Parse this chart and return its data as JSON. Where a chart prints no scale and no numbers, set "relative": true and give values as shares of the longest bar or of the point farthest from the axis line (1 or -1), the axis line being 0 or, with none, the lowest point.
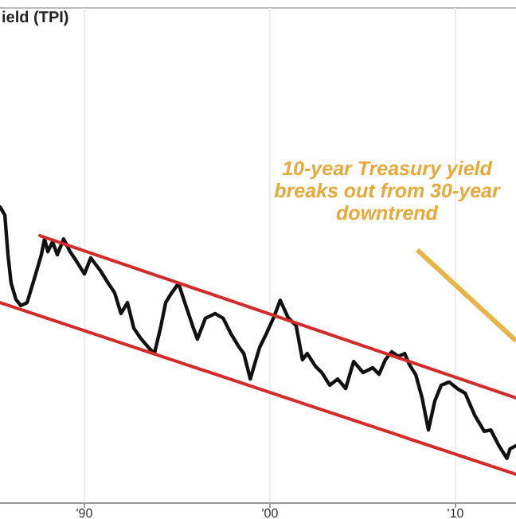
{
  "chart_data": {
    "type": "line",
    "title": "ield (TPI)",
    "relative": true,
    "x": [
      1985.45,
      1985.71,
      1985.88,
      1986.05,
      1986.31,
      1986.57,
      1986.91,
      1987.17,
      1987.43,
      1987.68,
      1987.85,
      1988.03,
      1988.28,
      1988.54,
      1988.88,
      1989.23,
      1989.57,
      1990.0,
      1990.34,
      1990.86,
      1991.29,
      1991.63,
      1991.97,
      1992.32,
      1992.66,
      1993.0,
      1993.43,
      1993.77,
      1994.12,
      1994.38,
      1994.64,
      1995.07,
      1995.41,
      1995.84,
      1996.09,
      1996.52,
      1997.04,
      1997.48,
      1997.91,
      1998.33,
      1998.59,
      1998.94,
      1999.19,
      1999.45,
      1999.79,
      2000.21,
      2000.55,
      2000.98,
      2001.41,
      2001.75,
      2002.01,
      2002.45,
      2002.79,
      2003.22,
      2003.65,
      2004.08,
      2004.51,
      2005.02,
      2005.54,
      2005.88,
      2006.22,
      2006.57,
      2006.91,
      2007.26,
      2007.51,
      2007.86,
      2008.2,
      2008.54,
      2008.88,
      2009.23,
      2009.66,
      2010.09,
      2010.52,
      2011.04,
      2011.55,
      2011.9,
      2012.33,
      2012.77,
      2012.94,
      2013.26
    ],
    "series": [
      {
        "color": "#111111",
        "values": [
          1.0,
          0.973,
          0.839,
          0.742,
          0.688,
          0.667,
          0.677,
          0.731,
          0.785,
          0.839,
          0.892,
          0.849,
          0.882,
          0.839,
          0.892,
          0.849,
          0.817,
          0.774,
          0.828,
          0.785,
          0.742,
          0.71,
          0.64,
          0.677,
          0.591,
          0.559,
          0.527,
          0.505,
          0.597,
          0.677,
          0.704,
          0.742,
          0.677,
          0.597,
          0.554,
          0.624,
          0.64,
          0.624,
          0.57,
          0.527,
          0.505,
          0.419,
          0.473,
          0.527,
          0.57,
          0.628,
          0.685,
          0.626,
          0.599,
          0.484,
          0.505,
          0.462,
          0.441,
          0.398,
          0.419,
          0.387,
          0.478,
          0.441,
          0.457,
          0.435,
          0.484,
          0.511,
          0.495,
          0.505,
          0.468,
          0.433,
          0.355,
          0.247,
          0.344,
          0.398,
          0.409,
          0.387,
          0.371,
          0.296,
          0.242,
          0.247,
          0.195,
          0.151,
          0.183,
          0.194
        ]
      },
      {
        "type": "line",
        "color": "#d42a2a",
        "x": [
          1987.6,
          2013.26
        ],
        "values": [
          0.903,
          0.355
        ]
      },
      {
        "type": "line",
        "color": "#d42a2a",
        "x": [
          1985.45,
          2013.26
        ],
        "values": [
          0.677,
          0.097
        ]
      }
    ],
    "xlim": [
      1985.45,
      2013.26
    ],
    "xticks": [
      {
        "value": 1990,
        "label": "'90"
      },
      {
        "value": 2000,
        "label": "'00"
      },
      {
        "value": 2010,
        "label": "'10"
      }
    ],
    "grid": "x",
    "annotations": [
      "10-year Treasury yield breaks out from 30-year downtrend"
    ]
  }
}
